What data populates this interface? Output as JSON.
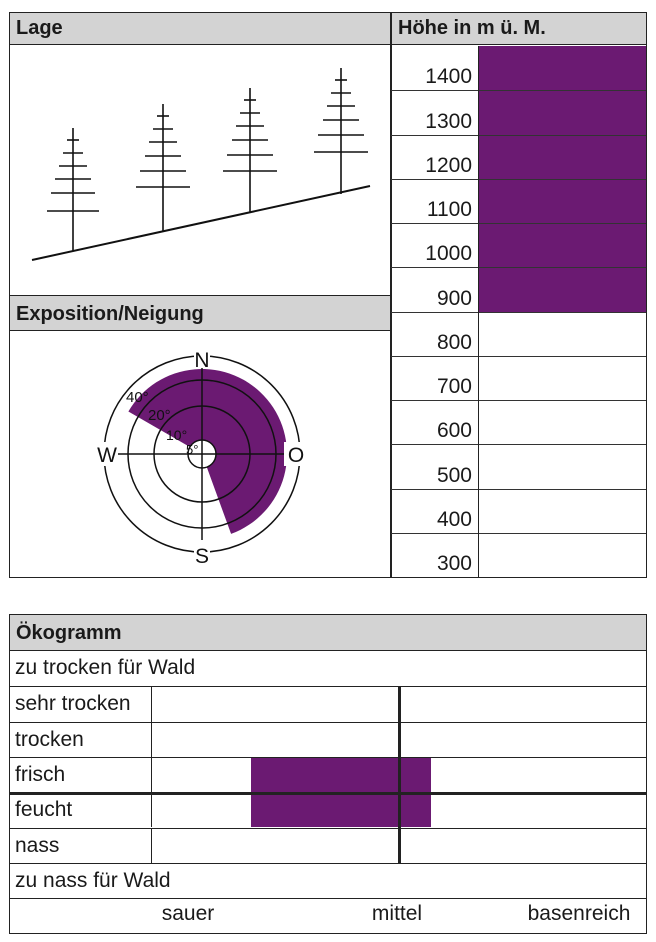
{
  "top_panel": {
    "lage_title": "Lage",
    "hoehe_title": "Höhe in m ü. M.",
    "exposition_title": "Exposition/Neigung"
  },
  "altitude": {
    "levels": [
      "1400",
      "1300",
      "1200",
      "1100",
      "1000",
      "900",
      "800",
      "700",
      "600",
      "500",
      "400",
      "300"
    ],
    "range_m": [
      850,
      1450
    ],
    "fill_color": "#6b1a72"
  },
  "compass": {
    "labels": {
      "north": "N",
      "east": "O",
      "south": "S",
      "west": "W"
    },
    "ring_labels": [
      "40°",
      "20°",
      "10°",
      "5°"
    ],
    "sector_from_deg": 300,
    "sector_to_deg": 160,
    "max_slope_deg": 40,
    "fill_color": "#6b1a72"
  },
  "oekogramm": {
    "title": "Ökogramm",
    "rows": [
      "zu trocken für Wald",
      "sehr trocken",
      "trocken",
      "frisch",
      "feucht",
      "nass",
      "zu nass für Wald"
    ],
    "x_labels": [
      "sauer",
      "mittel",
      "basenreich"
    ],
    "highlight": {
      "moisture": [
        "frisch",
        "feucht"
      ],
      "acidity_fraction": [
        0.203,
        0.566
      ]
    },
    "fill_color": "#6b1a72"
  }
}
